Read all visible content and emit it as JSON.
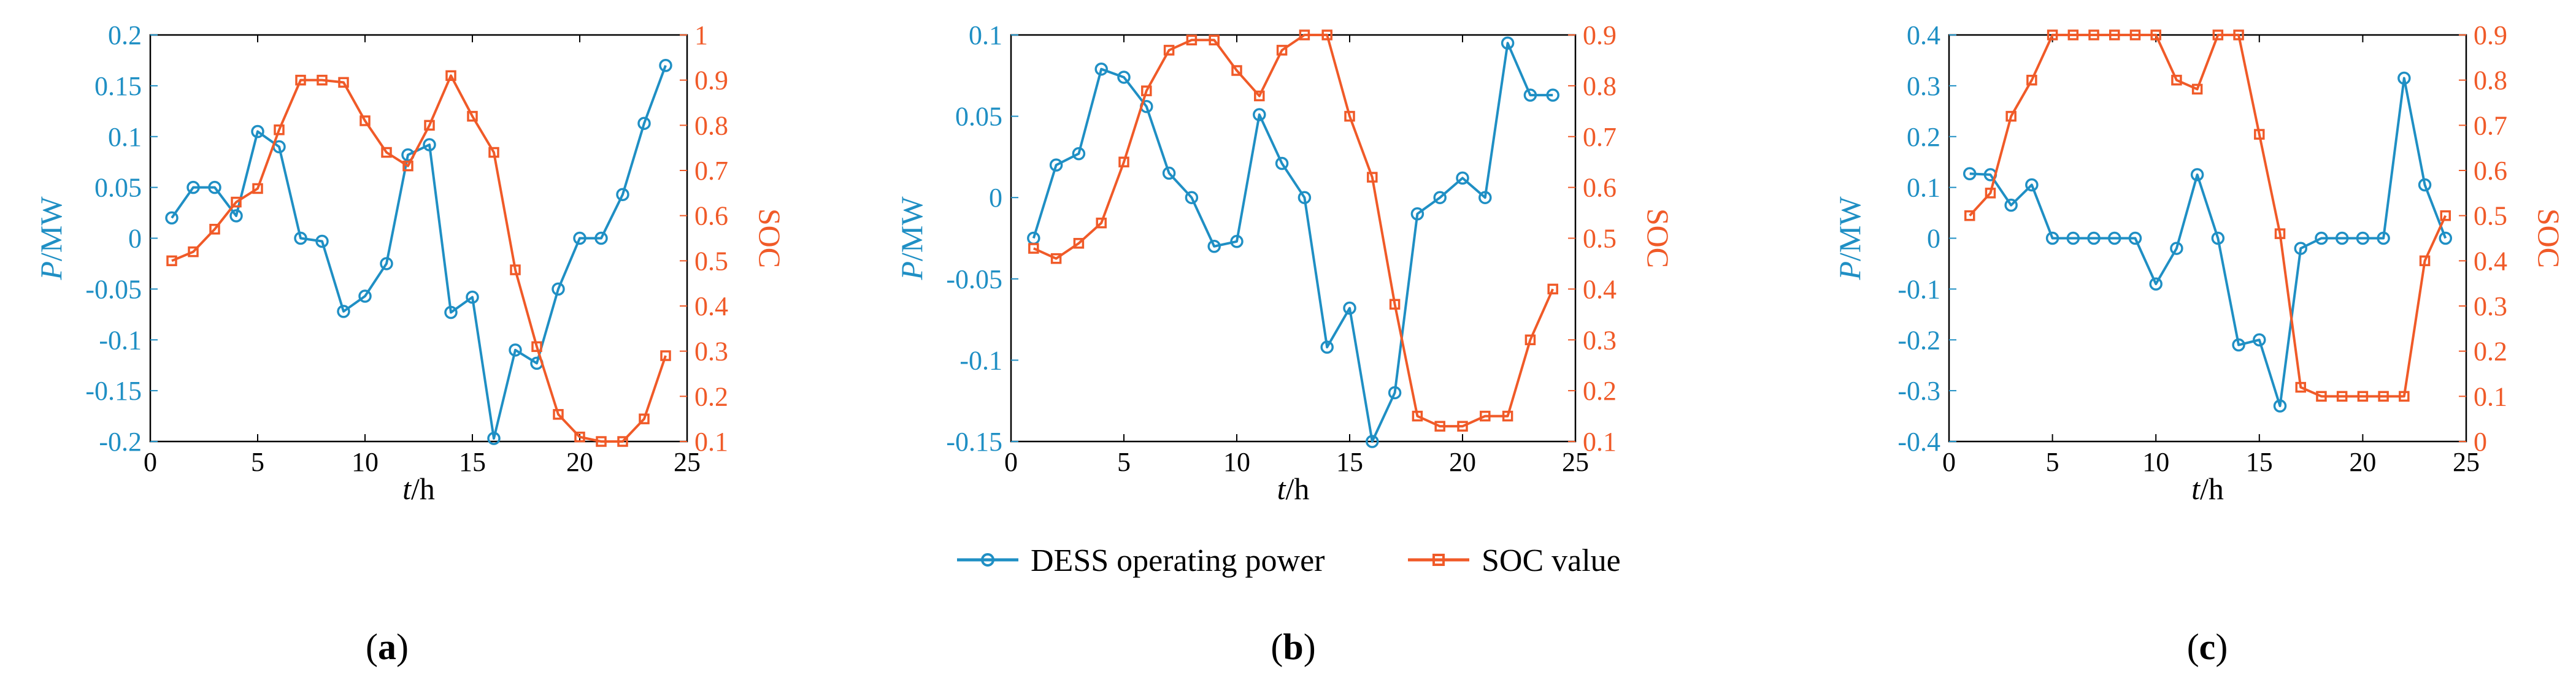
{
  "colors": {
    "power": "#1f8fc4",
    "soc": "#f05a28",
    "axis": "#000000"
  },
  "legend": {
    "power_label": "DESS operating power",
    "soc_label": "SOC value"
  },
  "chart_data": [
    {
      "panel": "a",
      "type": "line",
      "xlabel_italic": "t",
      "xlabel_unit": "/h",
      "ylabel_italic": "P",
      "ylabel_unit": "/MW",
      "y2label": "SOC",
      "xlim": [
        0,
        25
      ],
      "xticks": [
        "0",
        "5",
        "10",
        "15",
        "20",
        "25"
      ],
      "ylim": [
        -0.2,
        0.2
      ],
      "yticks": [
        "-0.2",
        "-0.15",
        "-0.1",
        "-0.05",
        "0",
        "0.05",
        "0.1",
        "0.15",
        "0.2"
      ],
      "y2lim": [
        0.1,
        1.0
      ],
      "y2ticks": [
        "0.1",
        "0.2",
        "0.3",
        "0.4",
        "0.5",
        "0.6",
        "0.7",
        "0.8",
        "0.9",
        "1"
      ],
      "x": [
        1,
        2,
        3,
        4,
        5,
        6,
        7,
        8,
        9,
        10,
        11,
        12,
        13,
        14,
        15,
        16,
        17,
        18,
        19,
        20,
        21,
        22,
        23,
        24
      ],
      "series": [
        {
          "name": "DESS operating power",
          "axis": "left",
          "values": [
            0.02,
            0.05,
            0.05,
            0.022,
            0.105,
            0.09,
            0.0,
            -0.003,
            -0.072,
            -0.057,
            -0.025,
            0.082,
            0.092,
            -0.073,
            -0.058,
            -0.197,
            -0.11,
            -0.123,
            -0.05,
            0.0,
            0.0,
            0.043,
            0.113,
            0.17
          ]
        },
        {
          "name": "SOC value",
          "axis": "right",
          "values": [
            0.5,
            0.52,
            0.57,
            0.63,
            0.66,
            0.79,
            0.9,
            0.9,
            0.895,
            0.81,
            0.74,
            0.71,
            0.8,
            0.91,
            0.82,
            0.74,
            0.48,
            0.31,
            0.16,
            0.11,
            0.1,
            0.1,
            0.15,
            0.29
          ]
        }
      ]
    },
    {
      "panel": "b",
      "type": "line",
      "xlabel_italic": "t",
      "xlabel_unit": "/h",
      "ylabel_italic": "P",
      "ylabel_unit": "/MW",
      "y2label": "SOC",
      "xlim": [
        0,
        25
      ],
      "xticks": [
        "0",
        "5",
        "10",
        "15",
        "20",
        "25"
      ],
      "ylim": [
        -0.15,
        0.1
      ],
      "yticks": [
        "-0.15",
        "-0.1",
        "-0.05",
        "0",
        "0.05",
        "0.1"
      ],
      "y2lim": [
        0.1,
        0.9
      ],
      "y2ticks": [
        "0.1",
        "0.2",
        "0.3",
        "0.4",
        "0.5",
        "0.6",
        "0.7",
        "0.8",
        "0.9"
      ],
      "x": [
        1,
        2,
        3,
        4,
        5,
        6,
        7,
        8,
        9,
        10,
        11,
        12,
        13,
        14,
        15,
        16,
        17,
        18,
        19,
        20,
        21,
        22,
        23,
        24
      ],
      "series": [
        {
          "name": "DESS operating power",
          "axis": "left",
          "values": [
            -0.025,
            0.02,
            0.027,
            0.079,
            0.074,
            0.056,
            0.015,
            0.0,
            -0.03,
            -0.027,
            0.051,
            0.021,
            0.0,
            -0.092,
            -0.068,
            -0.15,
            -0.12,
            -0.01,
            0.0,
            0.012,
            0.0,
            0.095,
            0.063,
            0.063
          ]
        },
        {
          "name": "SOC value",
          "axis": "right",
          "values": [
            0.48,
            0.46,
            0.49,
            0.53,
            0.65,
            0.79,
            0.87,
            0.89,
            0.89,
            0.83,
            0.78,
            0.87,
            0.9,
            0.9,
            0.74,
            0.62,
            0.37,
            0.15,
            0.13,
            0.13,
            0.15,
            0.15,
            0.3,
            0.4
          ]
        }
      ]
    },
    {
      "panel": "c",
      "type": "line",
      "xlabel_italic": "t",
      "xlabel_unit": "/h",
      "ylabel_italic": "P",
      "ylabel_unit": "/MW",
      "y2label": "SOC",
      "xlim": [
        0,
        25
      ],
      "xticks": [
        "0",
        "5",
        "10",
        "15",
        "20",
        "25"
      ],
      "ylim": [
        -0.4,
        0.4
      ],
      "yticks": [
        "-0.4",
        "-0.3",
        "-0.2",
        "-0.1",
        "0",
        "0.1",
        "0.2",
        "0.3",
        "0.4"
      ],
      "y2lim": [
        0,
        0.9
      ],
      "y2ticks": [
        "0",
        "0.1",
        "0.2",
        "0.3",
        "0.4",
        "0.5",
        "0.6",
        "0.7",
        "0.8",
        "0.9"
      ],
      "x": [
        1,
        2,
        3,
        4,
        5,
        6,
        7,
        8,
        9,
        10,
        11,
        12,
        13,
        14,
        15,
        16,
        17,
        18,
        19,
        20,
        21,
        22,
        23,
        24
      ],
      "series": [
        {
          "name": "DESS operating power",
          "axis": "left",
          "values": [
            0.127,
            0.125,
            0.065,
            0.105,
            0.0,
            0.0,
            0.0,
            0.0,
            0.0,
            -0.09,
            -0.02,
            0.125,
            0.0,
            -0.21,
            -0.2,
            -0.33,
            -0.02,
            0.0,
            0.0,
            0.0,
            0.0,
            0.315,
            0.105,
            0.0
          ]
        },
        {
          "name": "SOC value",
          "axis": "right",
          "values": [
            0.5,
            0.55,
            0.72,
            0.8,
            0.9,
            0.9,
            0.9,
            0.9,
            0.9,
            0.9,
            0.8,
            0.78,
            0.9,
            0.9,
            0.68,
            0.46,
            0.12,
            0.1,
            0.1,
            0.1,
            0.1,
            0.1,
            0.4,
            0.5
          ]
        }
      ]
    }
  ]
}
